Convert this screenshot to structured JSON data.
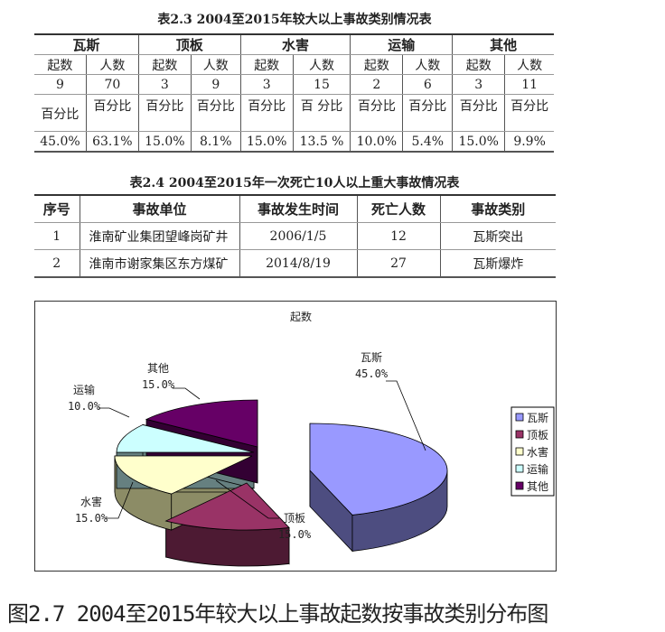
{
  "table1": {
    "title": "表2.3  2004至2015年较大以上事故类别情况表",
    "categories": [
      "瓦斯",
      "顶板",
      "水害",
      "运输",
      "其他"
    ],
    "subheaders": [
      "起数",
      "人数",
      "起数",
      "人数",
      "起数",
      "人数",
      "起数",
      "人数",
      "起数",
      "人数"
    ],
    "values": [
      "9",
      "70",
      "3",
      "9",
      "3",
      "15",
      "2",
      "6",
      "3",
      "11"
    ],
    "pct_labels": [
      "百分比",
      "百分比",
      "百分比",
      "百分比",
      "百分比",
      "百 分比",
      "百分比",
      "百分比",
      "百分比",
      "百分比"
    ],
    "percents": [
      "45.0%",
      "63.1%",
      "15.0%",
      "8.1%",
      "15.0%",
      "13.5 %",
      "10.0%",
      "5.4%",
      "15.0%",
      "9.9%"
    ]
  },
  "table2": {
    "title": "表2.4  2004至2015年一次死亡10人以上重大事故情况表",
    "headers": [
      "序号",
      "事故单位",
      "事故发生时间",
      "死亡人数",
      "事故类别"
    ],
    "rows": [
      [
        "1",
        "淮南矿业集团望峰岗矿井",
        "2006/1/5",
        "12",
        "瓦斯突出"
      ],
      [
        "2",
        "淮南市谢家集区东方煤矿",
        "2014/8/19",
        "27",
        "瓦斯爆炸"
      ]
    ]
  },
  "chart_data": {
    "type": "pie",
    "style": "3d-exploded",
    "title": "起数",
    "legend_position": "right",
    "categories": [
      "瓦斯",
      "顶板",
      "水害",
      "运输",
      "其他"
    ],
    "values": [
      9,
      3,
      3,
      2,
      3
    ],
    "data_labels": [
      "45.0%",
      "15.0%",
      "15.0%",
      "10.0%",
      "15.0%"
    ],
    "colors": [
      "#9999FF",
      "#993366",
      "#FFFFCC",
      "#CCFFFF",
      "#660066"
    ]
  },
  "caption": "图2.7 2004至2015年较大以上事故起数按事故类别分布图"
}
